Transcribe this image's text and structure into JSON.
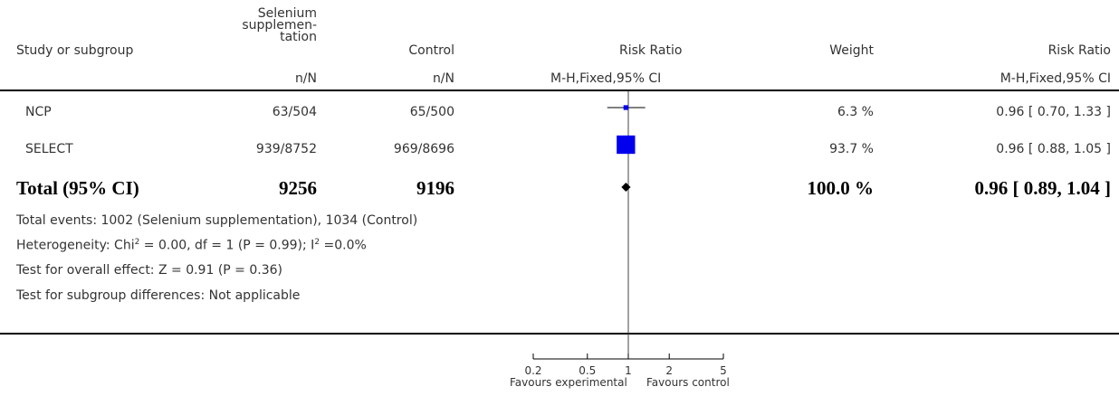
{
  "header": {
    "col_study": "Study or subgroup",
    "col_exp_lines": [
      "Selenium",
      "supplemen-",
      "tation"
    ],
    "col_ctrl": "Control",
    "col_plot": "Risk Ratio",
    "col_weight": "Weight",
    "col_rr": "Risk Ratio",
    "sub_exp": "n/N",
    "sub_ctrl": "n/N",
    "sub_plot": "M-H,Fixed,95% CI",
    "sub_rr": "M-H,Fixed,95% CI"
  },
  "studies": [
    {
      "name": "NCP",
      "exp": "63/504",
      "ctrl": "65/500",
      "weight": "6.3 %",
      "ci_text": "0.96 [ 0.70, 1.33 ]"
    },
    {
      "name": "SELECT",
      "exp": "939/8752",
      "ctrl": "969/8696",
      "weight": "93.7 %",
      "ci_text": "0.96 [ 0.88, 1.05 ]"
    }
  ],
  "total": {
    "label": "Total (95% CI)",
    "exp": "9256",
    "ctrl": "9196",
    "weight": "100.0 %",
    "ci_text": "0.96 [ 0.89, 1.04 ]"
  },
  "footnotes": {
    "events": "Total events: 1002 (Selenium supplementation), 1034 (Control)",
    "heterogeneity_pre": "Heterogeneity: Chi",
    "heterogeneity_mid": " = 0.00, df = 1 (P = 0.99); I",
    "heterogeneity_post": " =0.0%",
    "sup": "2",
    "overall": "Test for overall effect: Z = 0.91 (P = 0.36)",
    "subgroup": "Test for subgroup differences: Not applicable"
  },
  "axis": {
    "favours_left": "Favours experimental",
    "favours_right": "Favours control"
  },
  "chart_data": {
    "type": "scatter",
    "scale": "log",
    "xlim": [
      0.2,
      5
    ],
    "ticks": [
      0.2,
      0.5,
      1,
      2,
      5
    ],
    "tick_labels": [
      "0.2",
      "0.5",
      "1",
      "2",
      "5"
    ],
    "reference_line": 1,
    "series": [
      {
        "name": "NCP",
        "rr": 0.96,
        "lo": 0.7,
        "hi": 1.33,
        "weight": 6.3
      },
      {
        "name": "SELECT",
        "rr": 0.96,
        "lo": 0.88,
        "hi": 1.05,
        "weight": 93.7
      }
    ],
    "pooled": {
      "rr": 0.96,
      "lo": 0.89,
      "hi": 1.04
    },
    "colors": {
      "box": "#0000ee",
      "line": "#000000",
      "diamond": "#000000"
    }
  }
}
